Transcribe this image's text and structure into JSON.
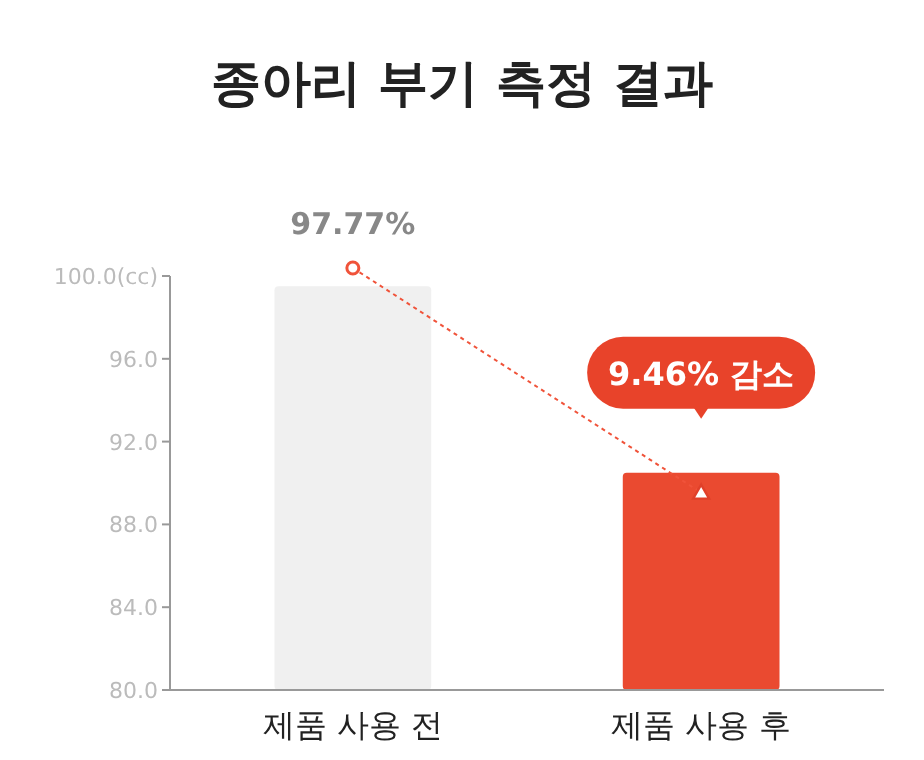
{
  "chart_data": {
    "type": "bar",
    "title": "종아리 부기 측정 결과",
    "categories": [
      "제품 사용 전",
      "제품 사용 후"
    ],
    "values": [
      99.5,
      90.5
    ],
    "colors": [
      "#f0f0f0",
      "#ea4a30"
    ],
    "ylim": [
      80,
      100
    ],
    "yticks": [
      {
        "value": 80,
        "label": "80.0"
      },
      {
        "value": 84,
        "label": "84.0"
      },
      {
        "value": 88,
        "label": "88.0"
      },
      {
        "value": 92,
        "label": "92.0"
      },
      {
        "value": 96,
        "label": "96.0"
      },
      {
        "value": 100,
        "label": "100.0(cc)"
      }
    ],
    "annotations": [
      "97.77%",
      "9.46% 감소"
    ]
  }
}
